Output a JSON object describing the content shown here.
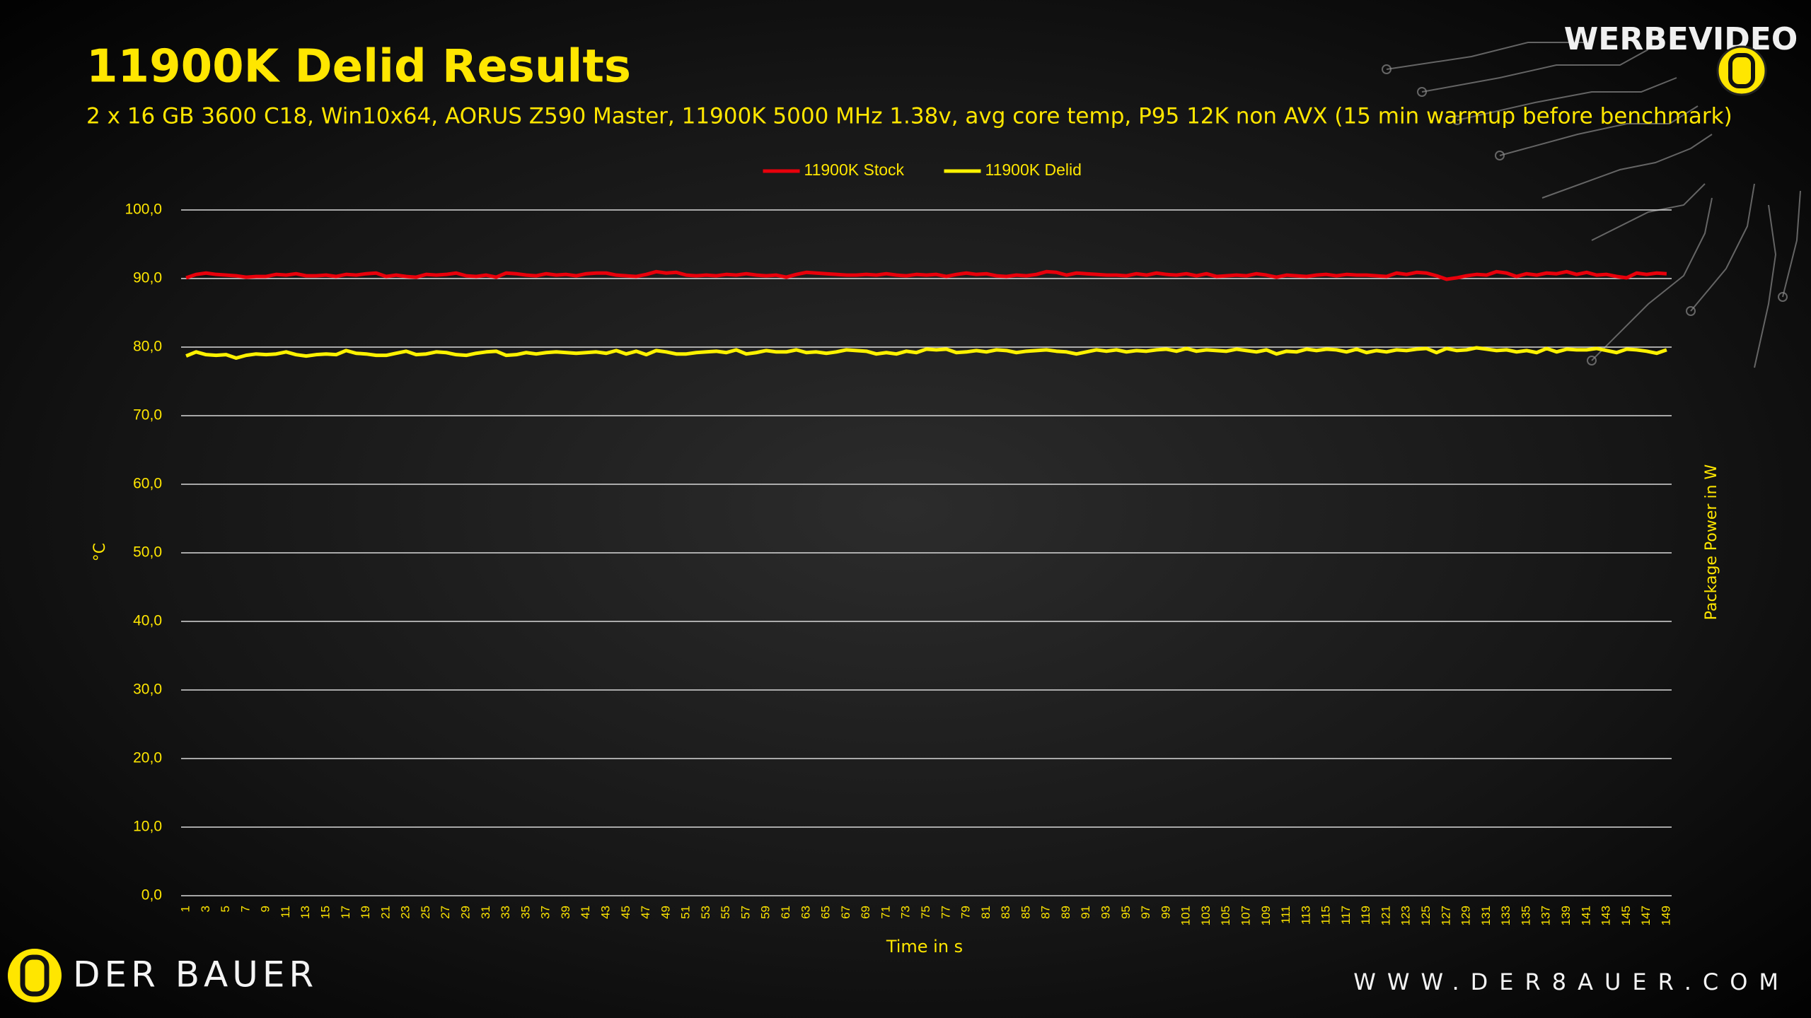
{
  "chart_data": {
    "type": "line",
    "title": "11900K Delid Results",
    "subtitle": "2 x 16 GB 3600 C18, Win10x64, AORUS Z590 Master, 11900K 5000 MHz 1.38v, avg core temp, P95 12K non AVX (15 min warmup before benchmark)",
    "x_label": "Time in s",
    "y_label": "°C",
    "y2_label": "Package Power in W",
    "legend": "top",
    "grid": true,
    "categories": [
      1,
      null,
      3,
      null,
      5,
      null,
      7,
      null,
      9,
      null,
      11,
      null,
      13,
      null,
      15,
      null,
      17,
      null,
      19,
      null,
      21,
      null,
      23,
      null,
      25,
      null,
      27,
      null,
      29,
      null,
      31,
      null,
      33,
      null,
      35,
      null,
      37,
      null,
      39,
      null,
      41,
      null,
      43,
      null,
      45,
      null,
      47,
      null,
      49,
      null,
      51,
      null,
      53,
      null,
      55,
      null,
      57,
      null,
      59,
      null,
      61,
      null,
      63,
      null,
      65,
      null,
      67,
      null,
      69,
      null,
      71,
      null,
      73,
      null,
      75,
      null,
      77,
      null,
      79,
      null,
      81,
      null,
      83,
      null,
      85,
      null,
      87,
      null,
      89,
      null,
      91,
      null,
      93,
      null,
      95,
      null,
      97,
      null,
      99,
      null,
      101,
      null,
      103,
      null,
      105,
      null,
      107,
      null,
      109,
      null,
      111,
      null,
      113,
      null,
      115,
      null,
      117,
      null,
      119,
      null,
      121,
      null,
      123,
      null,
      125,
      null,
      127,
      null,
      129,
      null,
      131,
      null,
      133,
      null,
      135,
      null,
      137,
      null,
      139,
      null,
      141,
      null,
      143,
      null,
      145,
      null,
      147,
      null,
      149
    ],
    "ylim": [
      0,
      100
    ],
    "yticks": [
      {
        "value": 0,
        "label": "0,0"
      },
      {
        "value": 10,
        "label": "10,0"
      },
      {
        "value": 20,
        "label": "20,0"
      },
      {
        "value": 30,
        "label": "30,0"
      },
      {
        "value": 40,
        "label": "40,0"
      },
      {
        "value": 50,
        "label": "50,0"
      },
      {
        "value": 60,
        "label": "60,0"
      },
      {
        "value": 70,
        "label": "70,0"
      },
      {
        "value": 80,
        "label": "80,0"
      },
      {
        "value": 90,
        "label": "90,0"
      },
      {
        "value": 100,
        "label": "100,0"
      }
    ],
    "series": [
      {
        "name": "11900K Stock",
        "color": "#e8000b",
        "values": [
          90.1,
          90.6,
          90.8,
          90.6,
          90.5,
          90.4,
          90.2,
          90.3,
          90.3,
          90.6,
          90.5,
          90.7,
          90.4,
          90.4,
          90.5,
          90.3,
          90.6,
          90.5,
          90.7,
          90.8,
          90.3,
          90.5,
          90.3,
          90.2,
          90.6,
          90.5,
          90.6,
          90.8,
          90.4,
          90.3,
          90.5,
          90.2,
          90.8,
          90.7,
          90.5,
          90.4,
          90.7,
          90.5,
          90.6,
          90.4,
          90.7,
          90.8,
          90.8,
          90.5,
          90.4,
          90.3,
          90.6,
          91.0,
          90.8,
          90.9,
          90.5,
          90.4,
          90.5,
          90.4,
          90.6,
          90.5,
          90.7,
          90.5,
          90.4,
          90.5,
          90.2,
          90.6,
          90.9,
          90.8,
          90.7,
          90.6,
          90.5,
          90.5,
          90.6,
          90.5,
          90.7,
          90.5,
          90.4,
          90.6,
          90.5,
          90.6,
          90.3,
          90.6,
          90.8,
          90.6,
          90.7,
          90.4,
          90.3,
          90.5,
          90.4,
          90.6,
          91.0,
          90.9,
          90.5,
          90.8,
          90.7,
          90.6,
          90.5,
          90.5,
          90.4,
          90.7,
          90.5,
          90.8,
          90.6,
          90.5,
          90.7,
          90.4,
          90.7,
          90.3,
          90.4,
          90.5,
          90.4,
          90.7,
          90.5,
          90.2,
          90.5,
          90.4,
          90.3,
          90.5,
          90.6,
          90.4,
          90.6,
          90.5,
          90.5,
          90.4,
          90.3,
          90.8,
          90.6,
          90.9,
          90.8,
          90.4,
          89.9,
          90.1,
          90.4,
          90.6,
          90.5,
          91.0,
          90.8,
          90.3,
          90.7,
          90.5,
          90.8,
          90.7,
          91.0,
          90.6,
          90.9,
          90.5,
          90.6,
          90.3,
          90.1,
          90.8,
          90.6,
          90.8,
          90.7
        ]
      },
      {
        "name": "11900K Delid",
        "color": "#fff200",
        "values": [
          78.7,
          79.3,
          78.9,
          78.8,
          78.9,
          78.4,
          78.8,
          79.0,
          78.9,
          79.0,
          79.3,
          78.9,
          78.7,
          78.9,
          79.0,
          78.9,
          79.5,
          79.1,
          79.0,
          78.8,
          78.8,
          79.1,
          79.4,
          78.9,
          79.0,
          79.3,
          79.2,
          78.9,
          78.8,
          79.1,
          79.3,
          79.4,
          78.8,
          78.9,
          79.2,
          79.0,
          79.2,
          79.3,
          79.2,
          79.1,
          79.2,
          79.3,
          79.1,
          79.5,
          79.0,
          79.4,
          78.9,
          79.5,
          79.3,
          79.0,
          79.0,
          79.2,
          79.3,
          79.4,
          79.2,
          79.6,
          79.0,
          79.2,
          79.5,
          79.3,
          79.3,
          79.6,
          79.2,
          79.3,
          79.1,
          79.3,
          79.6,
          79.5,
          79.4,
          79.0,
          79.2,
          79.0,
          79.4,
          79.2,
          79.7,
          79.6,
          79.7,
          79.2,
          79.3,
          79.5,
          79.3,
          79.6,
          79.5,
          79.2,
          79.4,
          79.5,
          79.6,
          79.4,
          79.3,
          79.0,
          79.3,
          79.6,
          79.4,
          79.6,
          79.3,
          79.5,
          79.4,
          79.6,
          79.7,
          79.4,
          79.8,
          79.4,
          79.6,
          79.5,
          79.4,
          79.7,
          79.5,
          79.3,
          79.6,
          79.0,
          79.4,
          79.3,
          79.7,
          79.5,
          79.7,
          79.6,
          79.3,
          79.7,
          79.2,
          79.5,
          79.3,
          79.6,
          79.5,
          79.7,
          79.8,
          79.2,
          79.8,
          79.5,
          79.6,
          79.9,
          79.7,
          79.5,
          79.6,
          79.3,
          79.5,
          79.2,
          79.8,
          79.3,
          79.7,
          79.6,
          79.6,
          79.8,
          79.5,
          79.2,
          79.7,
          79.6,
          79.4,
          79.1,
          79.6
        ]
      }
    ]
  },
  "branding": {
    "badge": "WERBEVIDEO",
    "logo": "DER BAUER",
    "url": "WWW.DER8AUER.COM"
  }
}
